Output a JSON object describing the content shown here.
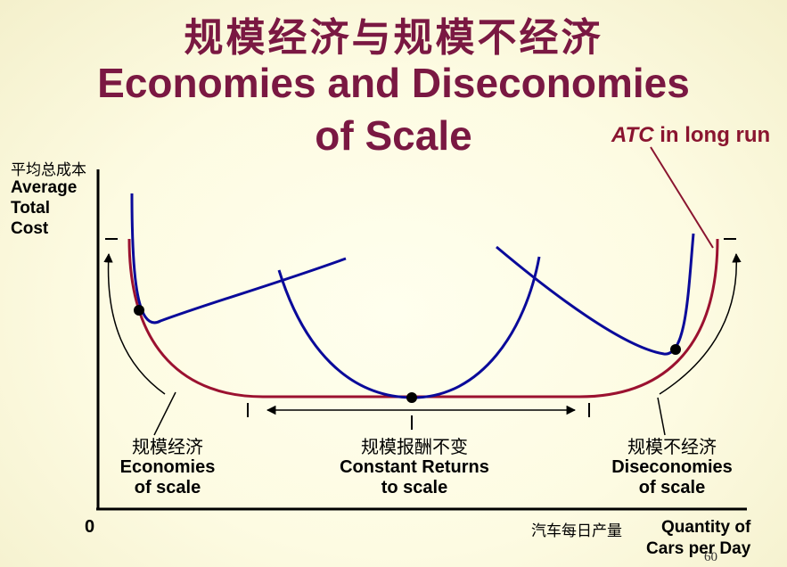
{
  "title": {
    "chinese": "规模经济与规模不经济",
    "english_line1": "Economies and Diseconomies",
    "english_line2": "of Scale"
  },
  "y_axis": {
    "chinese": "平均总成本",
    "line1": "Average",
    "line2": "Total",
    "line3": "Cost"
  },
  "x_axis": {
    "chinese": "汽车每日产量",
    "line1": "Quantity of",
    "line2": "Cars per Day",
    "origin": "0"
  },
  "long_run_curve": {
    "italic": "ATC",
    "rest": " in long run",
    "color": "#9b1130"
  },
  "short_run_curve_color": "#0a0a9a",
  "regions": [
    {
      "chinese": "规模经济",
      "line1": "Economies",
      "line2": "of scale"
    },
    {
      "chinese": "规模报酬不变",
      "line1": "Constant Returns",
      "line2": "to scale"
    },
    {
      "chinese": "规模不经济",
      "line1": "Diseconomies",
      "line2": "of scale"
    }
  ],
  "page_number": "60"
}
